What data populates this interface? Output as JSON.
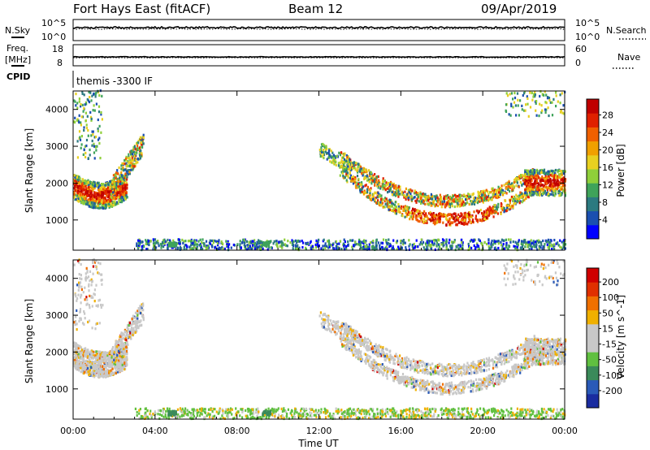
{
  "header": {
    "radar": "Fort Hays East (fitACF)",
    "beam": "Beam 12",
    "date": "09/Apr/2019"
  },
  "top_panels": {
    "nsky_label": "N.Sky",
    "nsky_axis": [
      "10^5",
      "10^0"
    ],
    "nsearch_label": "N.Search",
    "nsearch_axis": [
      "10^5",
      "10^0"
    ],
    "freq_label_line1": "Freq.",
    "freq_label_line2": "[MHz]",
    "freq_axis": [
      "18",
      "8"
    ],
    "nave_label": "Nave",
    "nave_axis": [
      "60",
      "0"
    ],
    "cpid_label": "CPID",
    "cpid_text": "themis -3300 IF"
  },
  "colors": {
    "power": [
      "#0000ff",
      "#1a4fb0",
      "#2c7a80",
      "#3fa35a",
      "#8fcf3a",
      "#e8d020",
      "#f0a000",
      "#f06000",
      "#e02000",
      "#c00000"
    ],
    "velocity": [
      "#1a2ca0",
      "#2a5ab8",
      "#3a8a5a",
      "#60c040",
      "#c8c8c8",
      "#c8c8c8",
      "#f0b000",
      "#f07000",
      "#e03000",
      "#d00000"
    ]
  },
  "chart_data": [
    {
      "type": "heatmap",
      "name": "power",
      "ylabel": "Slant Range [km]",
      "xlabel": "",
      "y_ticks": [
        "4000",
        "3000",
        "2000",
        "1000"
      ],
      "x_ticks": [
        "00:00",
        "04:00",
        "08:00",
        "12:00",
        "16:00",
        "20:00",
        "00:00"
      ],
      "ylim": [
        180,
        4500
      ],
      "xlim_hours": [
        0,
        24
      ],
      "colorbar_label": "Power [dB]",
      "colorbar_ticks": [
        "28",
        "24",
        "20",
        "16",
        "12",
        "8",
        "4"
      ],
      "colorbar_range": [
        0,
        30
      ]
    },
    {
      "type": "heatmap",
      "name": "velocity",
      "ylabel": "Slant Range [km]",
      "xlabel": "Time UT",
      "y_ticks": [
        "4000",
        "3000",
        "2000",
        "1000"
      ],
      "x_ticks": [
        "00:00",
        "04:00",
        "08:00",
        "12:00",
        "16:00",
        "20:00",
        "00:00"
      ],
      "ylim": [
        180,
        4500
      ],
      "xlim_hours": [
        0,
        24
      ],
      "colorbar_label": "Velocity [m s^-1]",
      "colorbar_ticks": [
        "200",
        "100",
        "50",
        "15",
        "-15",
        "-50",
        "-100",
        "-200"
      ]
    }
  ]
}
